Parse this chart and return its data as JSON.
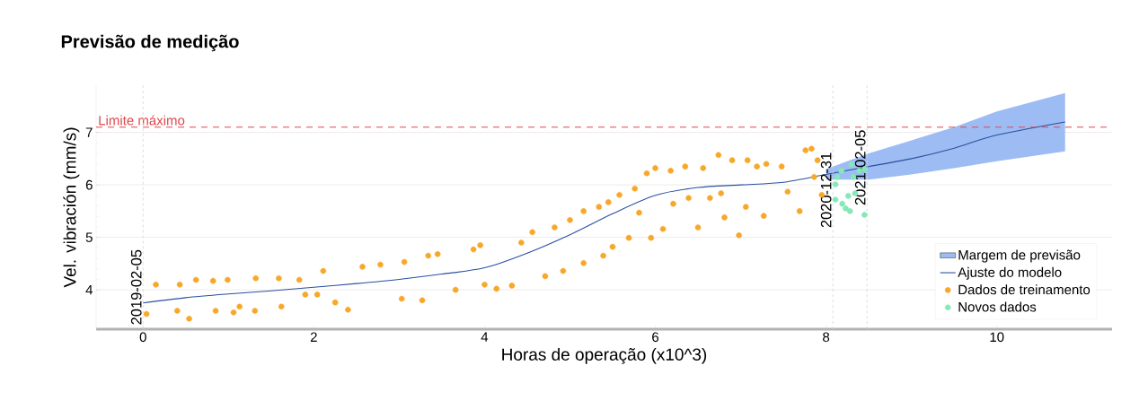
{
  "chart_data": {
    "type": "scatter",
    "title": "Previsão de medição",
    "xlabel": "Horas de operação (x10^3)",
    "ylabel": "Vel. vibración (mm/s)",
    "xlim": [
      -0.55,
      11.35
    ],
    "ylim": [
      3.25,
      7.9
    ],
    "xticks": [
      0,
      2,
      4,
      6,
      8,
      10
    ],
    "yticks": [
      4,
      5,
      6,
      7
    ],
    "grid": "y",
    "legend": "bottom right",
    "series": [
      {
        "name": "Margem de previsão",
        "type": "line",
        "color": "#9dbcf3",
        "x": [
          8,
          8.5,
          9,
          9.5,
          10,
          10.8
        ],
        "values": [
          null,
          null,
          null,
          null,
          null,
          null
        ],
        "lower": [
          6.1,
          6.1,
          6.2,
          6.32,
          6.45,
          6.64
        ],
        "upper": [
          6.3,
          6.6,
          6.85,
          7.1,
          7.4,
          7.75
        ]
      },
      {
        "name": "Ajuste do modelo",
        "type": "line",
        "color": "#2a4fa0",
        "x": [
          0,
          0.5,
          1,
          1.5,
          2,
          2.5,
          3,
          3.5,
          4,
          4.5,
          5,
          5.5,
          6,
          6.5,
          7,
          7.5,
          8,
          8.5,
          9,
          9.5,
          10,
          10.8
        ],
        "values": [
          3.75,
          3.85,
          3.92,
          3.98,
          4.05,
          4.12,
          4.2,
          4.3,
          4.42,
          4.7,
          5.05,
          5.45,
          5.8,
          5.95,
          6.0,
          6.05,
          6.2,
          6.35,
          6.5,
          6.7,
          6.95,
          7.2
        ]
      },
      {
        "name": "Dados de treinamento",
        "color": "#f7a82a",
        "marker": "circle",
        "x": [
          0.04,
          0.15,
          0.43,
          0.54,
          0.4,
          0.62,
          0.82,
          0.85,
          0.99,
          1.06,
          1.13,
          1.32,
          1.31,
          1.59,
          1.62,
          1.83,
          1.9,
          2.04,
          2.11,
          2.25,
          2.4,
          2.57,
          2.78,
          3.06,
          3.03,
          3.27,
          3.34,
          3.45,
          3.66,
          3.87,
          3.95,
          4.0,
          4.14,
          4.32,
          4.43,
          4.56,
          4.71,
          4.82,
          4.92,
          5.0,
          5.16,
          5.16,
          5.34,
          5.39,
          5.45,
          5.5,
          5.58,
          5.69,
          5.76,
          5.81,
          5.9,
          5.95,
          6.0,
          6.09,
          6.18,
          6.21,
          6.35,
          6.39,
          6.5,
          6.56,
          6.64,
          6.74,
          6.77,
          6.81,
          6.9,
          6.98,
          7.08,
          7.06,
          7.19,
          7.27,
          7.3,
          7.48,
          7.55,
          7.69,
          7.76,
          7.83,
          7.9,
          7.86,
          7.95
        ],
        "values": [
          3.54,
          4.1,
          4.1,
          3.45,
          3.6,
          4.19,
          4.17,
          3.6,
          4.19,
          3.57,
          3.68,
          4.22,
          3.6,
          4.22,
          3.68,
          4.19,
          3.91,
          3.91,
          4.36,
          3.76,
          3.62,
          4.44,
          4.48,
          4.53,
          3.83,
          3.8,
          4.65,
          4.68,
          4.0,
          4.77,
          4.85,
          4.1,
          4.02,
          4.08,
          4.9,
          5.1,
          4.26,
          5.19,
          4.36,
          5.33,
          4.51,
          5.5,
          5.58,
          4.65,
          5.67,
          4.82,
          5.81,
          4.99,
          5.93,
          5.47,
          6.22,
          4.99,
          6.32,
          5.16,
          6.27,
          5.64,
          6.35,
          5.75,
          5.19,
          6.32,
          5.75,
          6.57,
          5.84,
          5.38,
          6.47,
          5.04,
          6.47,
          5.58,
          6.35,
          5.41,
          6.4,
          6.35,
          5.87,
          5.5,
          6.66,
          6.69,
          6.47,
          6.15,
          5.81
        ]
      },
      {
        "name": "Novos dados",
        "color": "#86e8b8",
        "marker": "circle",
        "x": [
          8.13,
          8.18,
          8.11,
          8.11,
          8.19,
          8.23,
          8.28,
          8.26,
          8.34,
          8.32,
          8.39,
          8.45,
          8.45,
          8.3
        ],
        "values": [
          6.15,
          6.27,
          6.01,
          5.72,
          5.64,
          5.55,
          5.5,
          5.79,
          5.84,
          6.15,
          6.27,
          6.3,
          5.43,
          6.39
        ]
      }
    ],
    "ref_lines": [
      {
        "axis": "y",
        "value": 7.1,
        "label": "Limite máximo",
        "color": "#e0474c",
        "line_style": "dashed"
      },
      {
        "axis": "x",
        "value": 0,
        "color": "#d4d4d4",
        "line_style": "dashed"
      },
      {
        "axis": "x",
        "value": 8.08,
        "color": "#d4d4d4",
        "line_style": "dashed"
      },
      {
        "axis": "x",
        "value": 8.48,
        "color": "#d4d4d4",
        "line_style": "dashed"
      }
    ],
    "annotations": [
      {
        "text": "2019-02-05",
        "x": 0,
        "y": 3.3
      },
      {
        "text": "2020-12-31",
        "x": 8.08,
        "y": 5.15
      },
      {
        "text": "2021-02-05",
        "x": 8.48,
        "y": 5.58
      }
    ]
  }
}
